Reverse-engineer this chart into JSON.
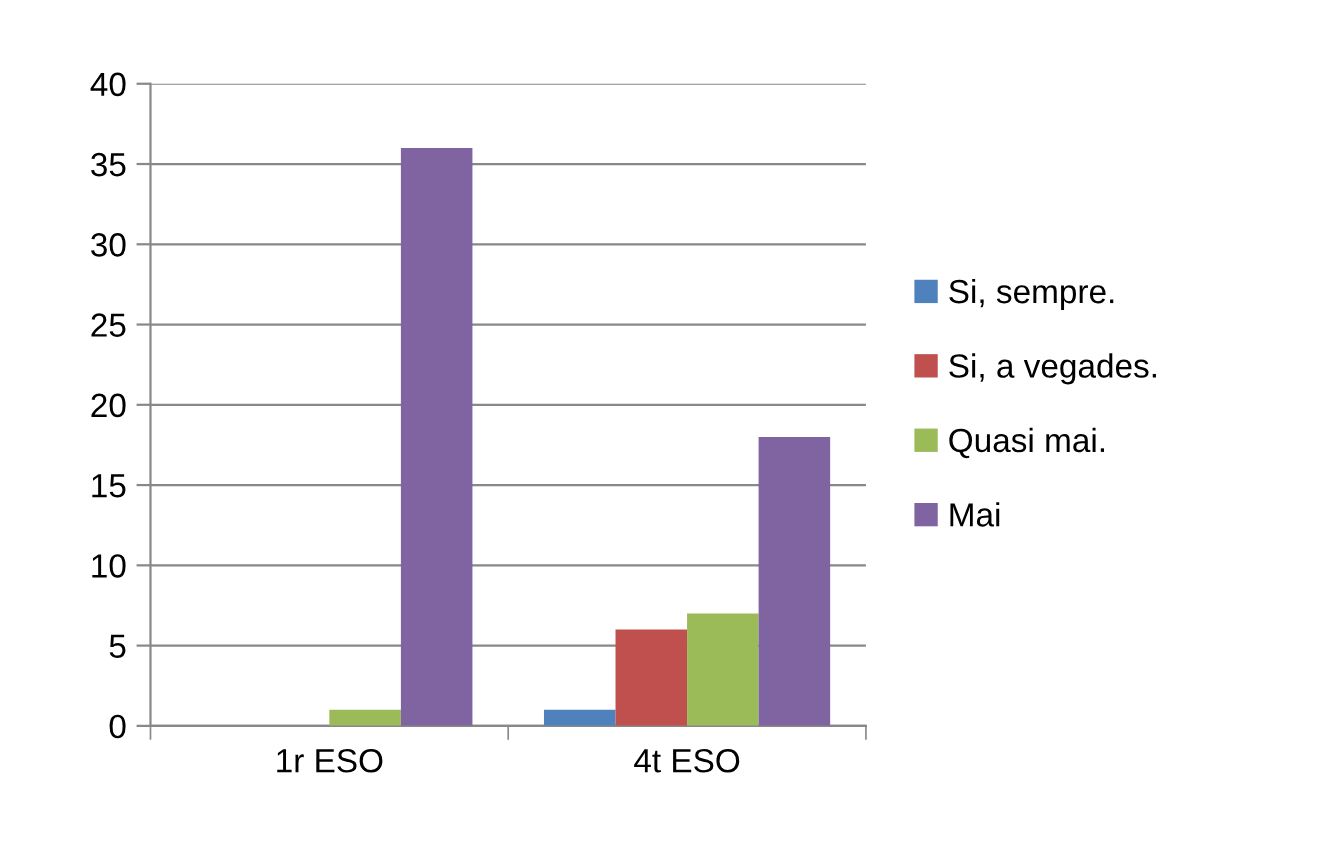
{
  "chart_data": {
    "type": "bar",
    "categories": [
      "1r ESO",
      "4t ESO"
    ],
    "series": [
      {
        "name": "Si, sempre.",
        "color": "#4f81bd",
        "values": [
          0,
          1
        ]
      },
      {
        "name": "Si, a vegades.",
        "color": "#c0504d",
        "values": [
          0,
          6
        ]
      },
      {
        "name": "Quasi mai.",
        "color": "#9bbb59",
        "values": [
          1,
          7
        ]
      },
      {
        "name": "Mai",
        "color": "#8064a2",
        "values": [
          36,
          18
        ]
      }
    ],
    "ylim": [
      0,
      40
    ],
    "yticks": [
      0,
      5,
      10,
      15,
      20,
      25,
      30,
      35,
      40
    ],
    "grid": "y",
    "legend": "right"
  }
}
